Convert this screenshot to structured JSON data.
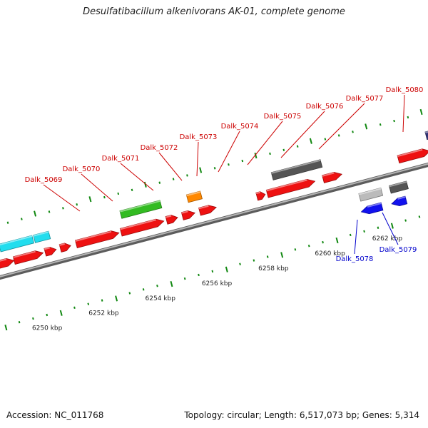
{
  "title": "Desulfatibacillum alkenivorans AK-01, complete genome",
  "footer": {
    "accession": "Accession: NC_011768",
    "summary": "Topology: circular; Length: 6,517,073 bp; Genes: 5,314"
  },
  "colors": {
    "forward_label": "#cc0000",
    "reverse_label": "#0000cc",
    "cds": "#ee1111",
    "cyan": "#22ddee",
    "green": "#33bb22",
    "orange": "#ff8800",
    "gray_dark": "#555555",
    "gray_light": "#bbbbbb",
    "blue": "#1111ee",
    "navy": "#333377",
    "tick": "#118811",
    "backbone": "#888888"
  },
  "scale": {
    "ticks": [
      {
        "label": "6250 kbp"
      },
      {
        "label": "6252 kbp"
      },
      {
        "label": "6254 kbp"
      },
      {
        "label": "6256 kbp"
      },
      {
        "label": "6258 kbp"
      },
      {
        "label": "6260 kbp"
      },
      {
        "label": "6262 kbp"
      }
    ]
  },
  "gene_labels": {
    "forward": [
      "Dalk_5069",
      "Dalk_5070",
      "Dalk_5071",
      "Dalk_5072",
      "Dalk_5073",
      "Dalk_5074",
      "Dalk_5075",
      "Dalk_5076",
      "Dalk_5077",
      "Dalk_5080"
    ],
    "reverse": [
      "Dalk_5078",
      "Dalk_5079"
    ]
  },
  "features": [
    {
      "track": "fwd1",
      "color": "cds"
    },
    {
      "track": "fwd1",
      "color": "cds"
    },
    {
      "track": "fwd1",
      "color": "cds"
    },
    {
      "track": "fwd1",
      "color": "cds"
    },
    {
      "track": "fwd1",
      "color": "cds"
    },
    {
      "track": "fwd1",
      "color": "cds"
    },
    {
      "track": "fwd1",
      "color": "cds"
    },
    {
      "track": "fwd1",
      "color": "cds"
    },
    {
      "track": "fwd1",
      "color": "cds"
    },
    {
      "track": "fwd1",
      "color": "cds"
    },
    {
      "track": "fwd1",
      "color": "cds"
    },
    {
      "track": "fwd1",
      "color": "cds"
    },
    {
      "track": "fwd1",
      "color": "cds"
    },
    {
      "track": "fwd1",
      "color": "cds"
    },
    {
      "track": "fwd2",
      "color": "cyan"
    },
    {
      "track": "fwd2",
      "color": "cyan"
    },
    {
      "track": "fwd2",
      "color": "cyan"
    },
    {
      "track": "fwd2",
      "color": "green"
    },
    {
      "track": "fwd2",
      "color": "orange"
    },
    {
      "track": "fwd2",
      "color": "gray_dark"
    },
    {
      "track": "fwd2",
      "color": "navy"
    },
    {
      "track": "rev1",
      "color": "gray_light"
    },
    {
      "track": "rev1",
      "color": "gray_dark"
    },
    {
      "track": "rev2",
      "color": "blue"
    },
    {
      "track": "rev2",
      "color": "blue"
    }
  ]
}
